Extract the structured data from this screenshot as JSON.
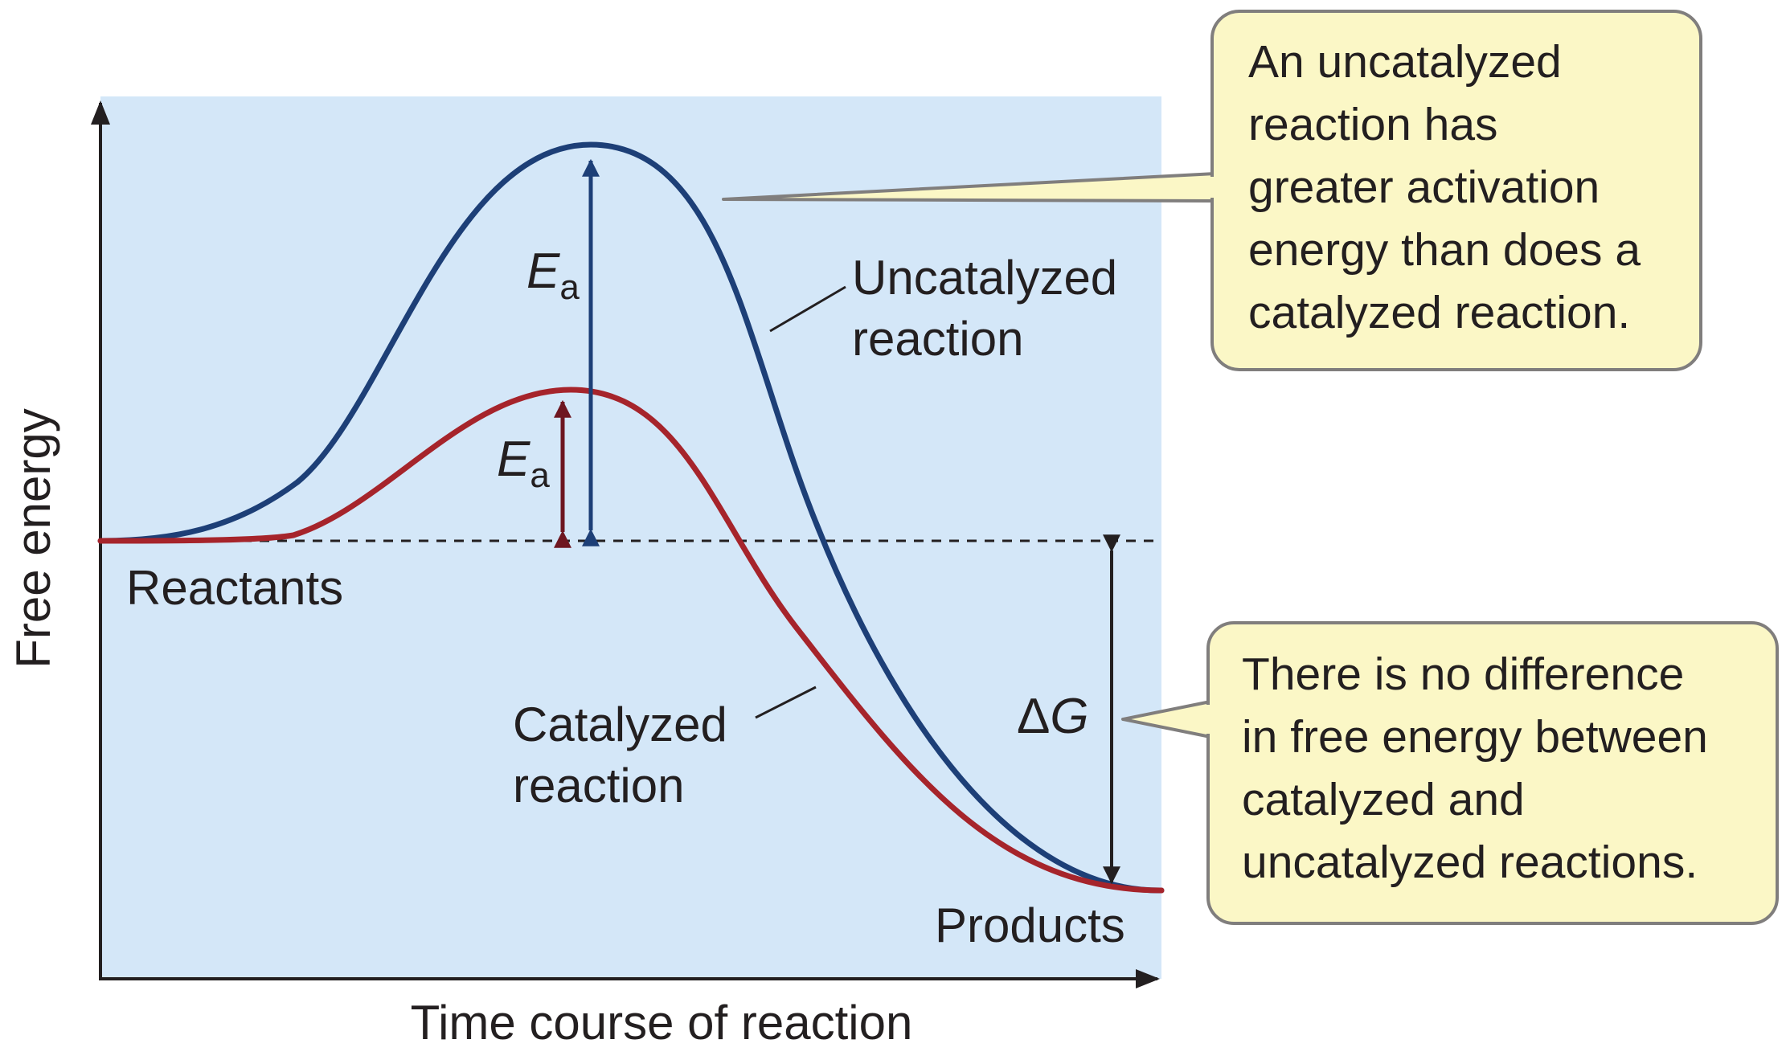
{
  "axes": {
    "y_label": "Free energy",
    "x_label": "Time course of reaction"
  },
  "labels": {
    "reactants": "Reactants",
    "products": "Products",
    "ea_symbol": "E",
    "ea_subscript": "a",
    "delta_g_delta": "Δ",
    "delta_g_symbol": "G",
    "uncatalyzed": [
      "Uncatalyzed",
      "reaction"
    ],
    "catalyzed": [
      "Catalyzed",
      "reaction"
    ]
  },
  "callouts": {
    "activation": [
      "An uncatalyzed",
      "reaction has",
      "greater activation",
      "energy than does a",
      "catalyzed reaction."
    ],
    "free_energy": [
      "There is no difference",
      "in free energy between",
      "catalyzed and",
      "uncatalyzed reactions."
    ]
  },
  "colors": {
    "plot_background": "#d4e7f8",
    "uncatalyzed_curve": "#1d3f77",
    "catalyzed_curve": "#a6242b",
    "callout_fill": "#fbf7c6",
    "callout_stroke": "#807e7d",
    "axis": "#231f20"
  }
}
